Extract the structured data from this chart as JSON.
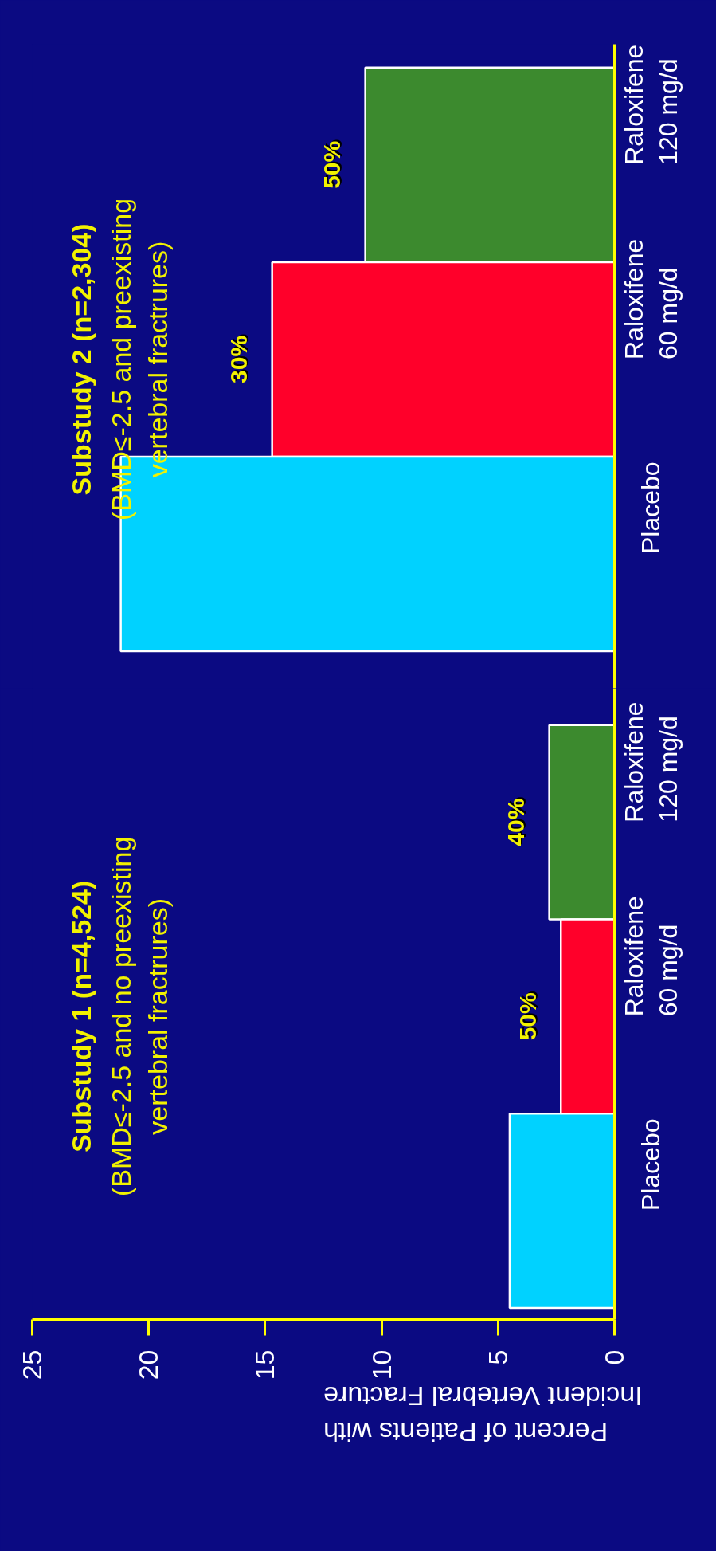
{
  "chart_data": [
    {
      "type": "bar",
      "orientation": "horizontal",
      "title": "Substudy 2 (n=2,304)",
      "subtitle": "(BMD≤-2.5 and preexisting\nvertebral fractrures)",
      "categories": [
        "Raloxifene\n120 mg/d",
        "Raloxifene\n60 mg/d",
        "Placebo"
      ],
      "values": [
        10.7,
        14.7,
        21.2
      ],
      "colors": [
        "#3c8a2e",
        "#ff002a",
        "#00d2ff"
      ],
      "annotations": [
        {
          "text": "50%",
          "x": 10.7,
          "y": "Raloxifene\n120 mg/d"
        },
        {
          "text": "30%",
          "x": 14.7,
          "y": "Raloxifene\n60 mg/d"
        }
      ],
      "xlim": [
        25,
        0
      ],
      "xticks": [
        25,
        20,
        15,
        10,
        5,
        0
      ],
      "tick_labels": "y"
    },
    {
      "type": "bar",
      "orientation": "horizontal",
      "title": "Substudy 1 (n=4,524)",
      "subtitle": "(BMD≤-2.5 and no preexisting\nvertebral fractrures)",
      "categories": [
        "Raloxifene\n120 mg/d",
        "Raloxifene\n60 mg/d",
        "Placebo"
      ],
      "values": [
        2.8,
        2.3,
        4.5
      ],
      "colors": [
        "#3c8a2e",
        "#ff002a",
        "#00d2ff"
      ],
      "annotations": [
        {
          "text": "40%",
          "x": 2.8,
          "y": "Raloxifene\n120 mg/d"
        },
        {
          "text": "50%",
          "x": 2.3,
          "y": "Raloxifene\n60 mg/d"
        }
      ],
      "xlim": [
        25,
        0
      ],
      "xticks": [
        25,
        20,
        15,
        10,
        5,
        0
      ],
      "xlabel": "Percent of Patients with\nIncident Vertebral Fracture"
    }
  ]
}
